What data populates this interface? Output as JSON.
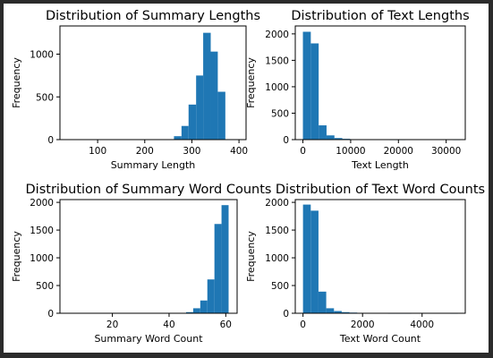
{
  "colors": {
    "bar": "#1f77b4",
    "window_bg": "#2b2b2b",
    "figure_bg": "#ffffff"
  },
  "chart_data": [
    {
      "type": "bar",
      "title": "Distribution of Summary Lengths",
      "xlabel": "Summary Length",
      "ylabel": "Frequency",
      "xlim": [
        20,
        415
      ],
      "ylim": [
        0,
        1330
      ],
      "xticks": [
        100,
        200,
        300,
        400
      ],
      "yticks": [
        0,
        500,
        1000
      ],
      "bin_edges": [
        262,
        278,
        293,
        309,
        324,
        340,
        355,
        371,
        386,
        402
      ],
      "values": [
        40,
        160,
        410,
        750,
        1250,
        1030,
        560,
        0,
        0
      ],
      "grid": false
    },
    {
      "type": "bar",
      "title": "Distribution of Text Lengths",
      "xlabel": "Text Length",
      "ylabel": "Frequency",
      "xlim": [
        -1600,
        34000
      ],
      "ylim": [
        0,
        2150
      ],
      "xticks": [
        0,
        10000,
        20000,
        30000
      ],
      "yticks": [
        0,
        500,
        1000,
        1500,
        2000
      ],
      "bin_edges": [
        0,
        1650,
        3300,
        4950,
        6600,
        8250,
        9900,
        11550,
        13200,
        14850,
        16500,
        18150,
        19800,
        21450,
        23100,
        24750,
        26400,
        28050,
        29700,
        31350,
        33000
      ],
      "values": [
        2040,
        1820,
        270,
        80,
        30,
        15,
        8,
        4,
        3,
        2,
        2,
        1,
        1,
        0,
        0,
        0,
        0,
        0,
        0,
        1
      ],
      "grid": false
    },
    {
      "type": "bar",
      "title": "Distribution of Summary Word Counts",
      "xlabel": "Summary Word Count",
      "ylabel": "Frequency",
      "xlim": [
        1.5,
        64
      ],
      "ylim": [
        0,
        2050
      ],
      "xticks": [
        20,
        40,
        60
      ],
      "yticks": [
        0,
        500,
        1000,
        1500,
        2000
      ],
      "bin_edges": [
        46,
        48.5,
        51,
        53.5,
        56,
        58.5,
        61
      ],
      "values": [
        20,
        90,
        230,
        610,
        1610,
        1950
      ],
      "grid": false
    },
    {
      "type": "bar",
      "title": "Distribution of Text Word Counts",
      "xlabel": "Text Word Count",
      "ylabel": "Frequency",
      "xlim": [
        -260,
        5450
      ],
      "ylim": [
        0,
        2050
      ],
      "xticks": [
        0,
        2000,
        4000
      ],
      "yticks": [
        0,
        500,
        1000,
        1500,
        2000
      ],
      "bin_edges": [
        0,
        260,
        520,
        780,
        1040,
        1300,
        1560,
        1820,
        2080,
        2340,
        2600,
        2860,
        3120,
        3380,
        3640,
        3900,
        4160,
        4420,
        4680,
        4940,
        5200
      ],
      "values": [
        1960,
        1850,
        390,
        90,
        40,
        20,
        12,
        8,
        5,
        3,
        2,
        1,
        1,
        1,
        0,
        0,
        0,
        0,
        0,
        1
      ],
      "grid": false
    }
  ]
}
